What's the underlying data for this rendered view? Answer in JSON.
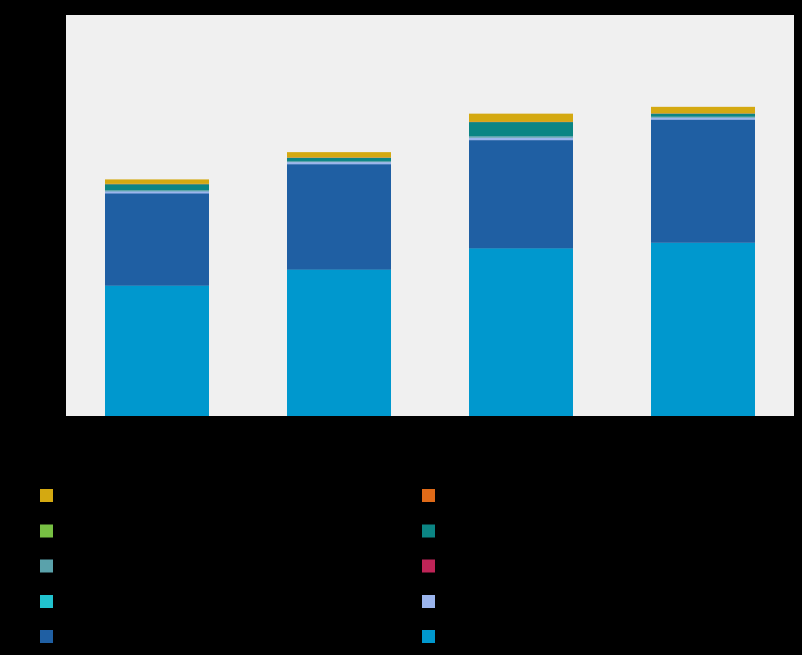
{
  "chart_data": {
    "type": "bar",
    "stacked": true,
    "title": "",
    "xlabel": "",
    "ylabel": "",
    "grid": false,
    "legend_position": "bottom",
    "plot_background": "#f0f0f0",
    "page_background": "#000000",
    "ylim": [
      0,
      100
    ],
    "categories": [
      "",
      "",
      "",
      ""
    ],
    "series": [
      {
        "color": "#0098ce",
        "values": [
          32.5,
          36.5,
          41.8,
          43.2
        ]
      },
      {
        "color": "#1f5fa3",
        "values": [
          23.0,
          26.3,
          27.0,
          30.7
        ]
      },
      {
        "color": "#9bb5ed",
        "values": [
          0.5,
          0.5,
          0.6,
          0.5
        ]
      },
      {
        "color": "#21c3cf",
        "values": [
          0.0,
          0.0,
          0.0,
          0.0
        ]
      },
      {
        "color": "#5aa2ab",
        "values": [
          0.3,
          0.3,
          0.4,
          0.3
        ]
      },
      {
        "color": "#bf2457",
        "values": [
          0.0,
          0.0,
          0.0,
          0.0
        ]
      },
      {
        "color": "#0b8584",
        "values": [
          1.5,
          0.8,
          3.5,
          0.7
        ]
      },
      {
        "color": "#77c043",
        "values": [
          0.0,
          0.0,
          0.0,
          0.0
        ]
      },
      {
        "color": "#df6a18",
        "values": [
          0.1,
          0.1,
          0.1,
          0.1
        ]
      },
      {
        "color": "#d4a911",
        "values": [
          1.1,
          1.3,
          2.0,
          1.6
        ]
      }
    ],
    "legend_order": [
      9,
      8,
      7,
      6,
      4,
      5,
      3,
      2,
      1,
      0
    ]
  }
}
